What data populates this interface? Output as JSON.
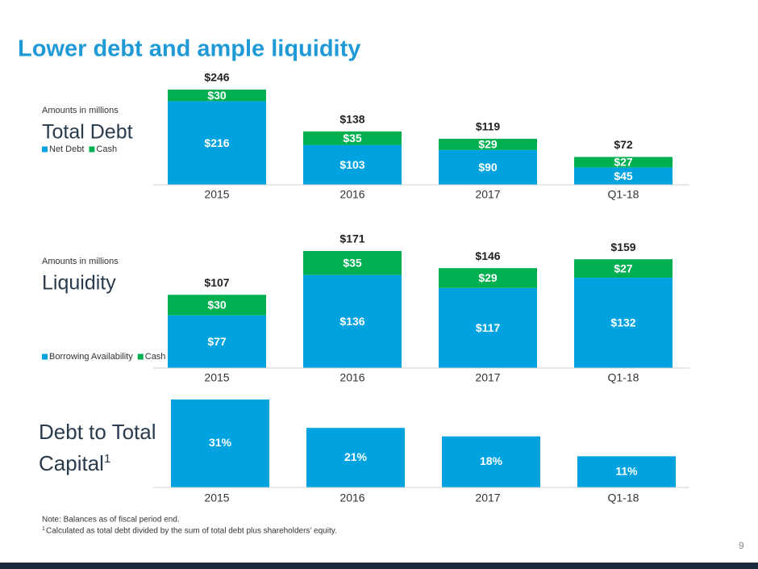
{
  "title": "Lower debt and ample liquidity",
  "chart_data": [
    {
      "type": "stacked-bar",
      "subtitle": "Amounts in millions",
      "title": "Total Debt",
      "categories": [
        "2015",
        "2016",
        "2017",
        "Q1-18"
      ],
      "series": [
        {
          "name": "Net Debt",
          "color": "#00a3e0",
          "values": [
            216,
            103,
            90,
            45
          ],
          "value_labels": [
            "$216",
            "$103",
            "$90",
            "$45"
          ]
        },
        {
          "name": "Cash",
          "color": "#00b050",
          "values": [
            30,
            35,
            29,
            27
          ],
          "value_labels": [
            "$30",
            "$35",
            "$29",
            "$27"
          ]
        }
      ],
      "totals": [
        246,
        138,
        119,
        72
      ],
      "total_labels": [
        "$246",
        "$138",
        "$119",
        "$72"
      ]
    },
    {
      "type": "stacked-bar",
      "subtitle": "Amounts in millions",
      "title": "Liquidity",
      "categories": [
        "2015",
        "2016",
        "2017",
        "Q1-18"
      ],
      "series": [
        {
          "name": "Borrowing Availability",
          "color": "#00a3e0",
          "values": [
            77,
            136,
            117,
            132
          ],
          "value_labels": [
            "$77",
            "$136",
            "$117",
            "$132"
          ]
        },
        {
          "name": "Cash",
          "color": "#00b050",
          "values": [
            30,
            35,
            29,
            27
          ],
          "value_labels": [
            "$30",
            "$35",
            "$29",
            "$27"
          ]
        }
      ],
      "totals": [
        107,
        171,
        146,
        159
      ],
      "total_labels": [
        "$107",
        "$171",
        "$146",
        "$159"
      ]
    },
    {
      "type": "bar",
      "title": "Debt to Total Capital",
      "title_note": "1",
      "categories": [
        "2015",
        "2016",
        "2017",
        "Q1-18"
      ],
      "values": [
        31,
        21,
        18,
        11
      ],
      "value_labels": [
        "31%",
        "21%",
        "18%",
        "11%"
      ],
      "color": "#00a3e0"
    }
  ],
  "notes": {
    "note": "Note: Balances as of fiscal period end.",
    "marker": "1",
    "text": "Calculated as total debt divided by the sum of total debt plus shareholders’ equity."
  },
  "page_number": "9"
}
